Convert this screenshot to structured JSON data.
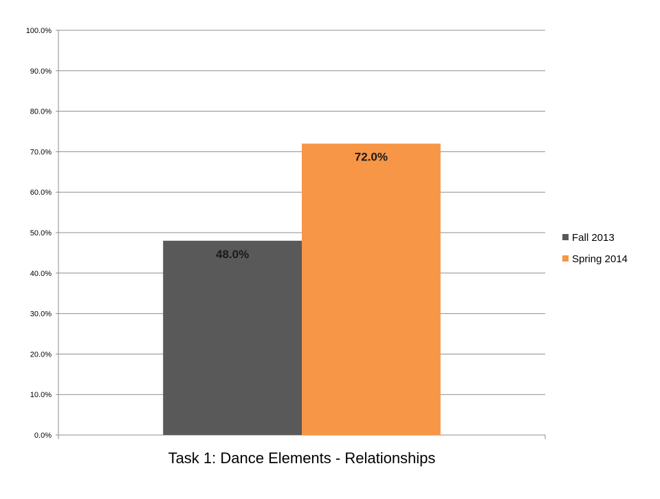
{
  "chart_data": {
    "type": "bar",
    "categories": [
      "Task 1: Dance Elements - Relationships"
    ],
    "series": [
      {
        "name": "Fall 2013",
        "values": [
          48.0
        ],
        "color": "#595959"
      },
      {
        "name": "Spring 2014",
        "values": [
          72.0
        ],
        "color": "#F79646"
      }
    ],
    "data_labels": [
      "48.0%",
      "72.0%"
    ],
    "ylim": [
      0,
      100
    ],
    "yticks": [
      0,
      10,
      20,
      30,
      40,
      50,
      60,
      70,
      80,
      90,
      100
    ],
    "ytick_labels": [
      "0.0%",
      "10.0%",
      "20.0%",
      "30.0%",
      "40.0%",
      "50.0%",
      "60.0%",
      "70.0%",
      "80.0%",
      "90.0%",
      "100.0%"
    ],
    "grid": true,
    "legend_position": "right"
  }
}
